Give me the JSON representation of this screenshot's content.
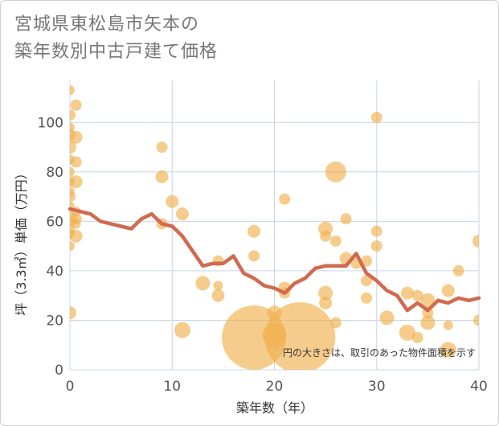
{
  "chart_data": {
    "type": "scatter",
    "title": [
      "宮城県東松島市矢本の",
      "築年数別中古戸建て価格"
    ],
    "xlabel": "築年数（年）",
    "ylabel": "坪（3.3㎡）単価（万円）",
    "xlim": [
      0,
      40
    ],
    "ylim": [
      0,
      117
    ],
    "xticks": [
      0,
      10,
      20,
      30,
      40
    ],
    "yticks": [
      0,
      20,
      40,
      60,
      80,
      100
    ],
    "note": "円の大きさは、取引のあった物件面積を示す",
    "colors": {
      "bubble": "#f0b14f",
      "line": "#d06a50",
      "grid": "#c8d4e0"
    },
    "bubbles": [
      {
        "x": 0,
        "y": 113,
        "s": 6
      },
      {
        "x": 0,
        "y": 103,
        "s": 7
      },
      {
        "x": 0,
        "y": 98,
        "s": 6
      },
      {
        "x": 0,
        "y": 95,
        "s": 7
      },
      {
        "x": 0,
        "y": 90,
        "s": 8
      },
      {
        "x": 0,
        "y": 85,
        "s": 6
      },
      {
        "x": 0,
        "y": 80,
        "s": 6
      },
      {
        "x": 0,
        "y": 76,
        "s": 6
      },
      {
        "x": 0,
        "y": 72,
        "s": 6
      },
      {
        "x": 0,
        "y": 70,
        "s": 7
      },
      {
        "x": 0,
        "y": 66,
        "s": 6
      },
      {
        "x": 0,
        "y": 61,
        "s": 9
      },
      {
        "x": 0,
        "y": 57,
        "s": 6
      },
      {
        "x": 0,
        "y": 55,
        "s": 6
      },
      {
        "x": 0,
        "y": 50,
        "s": 6
      },
      {
        "x": 0,
        "y": 23,
        "s": 8
      },
      {
        "x": 0.6,
        "y": 107,
        "s": 7
      },
      {
        "x": 0.6,
        "y": 94,
        "s": 8
      },
      {
        "x": 0.6,
        "y": 84,
        "s": 7
      },
      {
        "x": 0.6,
        "y": 76,
        "s": 8
      },
      {
        "x": 0.6,
        "y": 64,
        "s": 6
      },
      {
        "x": 0.6,
        "y": 61,
        "s": 7
      },
      {
        "x": 0.6,
        "y": 59,
        "s": 6
      },
      {
        "x": 0.6,
        "y": 54,
        "s": 8
      },
      {
        "x": 9,
        "y": 90,
        "s": 7
      },
      {
        "x": 9,
        "y": 78,
        "s": 8
      },
      {
        "x": 9,
        "y": 59,
        "s": 7
      },
      {
        "x": 10,
        "y": 68,
        "s": 8
      },
      {
        "x": 11,
        "y": 63,
        "s": 8
      },
      {
        "x": 11,
        "y": 16,
        "s": 10
      },
      {
        "x": 13,
        "y": 35,
        "s": 9
      },
      {
        "x": 14.5,
        "y": 44,
        "s": 7
      },
      {
        "x": 14.5,
        "y": 34,
        "s": 6
      },
      {
        "x": 14.5,
        "y": 30,
        "s": 8
      },
      {
        "x": 18,
        "y": 56,
        "s": 8
      },
      {
        "x": 18,
        "y": 46,
        "s": 7
      },
      {
        "x": 18,
        "y": 13,
        "s": 40
      },
      {
        "x": 20,
        "y": 23,
        "s": 9
      },
      {
        "x": 20,
        "y": 14,
        "s": 15
      },
      {
        "x": 21,
        "y": 69,
        "s": 7
      },
      {
        "x": 21,
        "y": 33,
        "s": 8
      },
      {
        "x": 21,
        "y": 31,
        "s": 7
      },
      {
        "x": 22.5,
        "y": 13,
        "s": 44
      },
      {
        "x": 25,
        "y": 57,
        "s": 9
      },
      {
        "x": 25,
        "y": 54,
        "s": 7
      },
      {
        "x": 25,
        "y": 31,
        "s": 9
      },
      {
        "x": 25,
        "y": 27,
        "s": 8
      },
      {
        "x": 26,
        "y": 80,
        "s": 13
      },
      {
        "x": 26,
        "y": 52,
        "s": 7
      },
      {
        "x": 26,
        "y": 19,
        "s": 7
      },
      {
        "x": 27,
        "y": 61,
        "s": 7
      },
      {
        "x": 27,
        "y": 45,
        "s": 8
      },
      {
        "x": 28,
        "y": 43,
        "s": 7
      },
      {
        "x": 29,
        "y": 44,
        "s": 7
      },
      {
        "x": 29,
        "y": 36,
        "s": 7
      },
      {
        "x": 29,
        "y": 29,
        "s": 7
      },
      {
        "x": 30,
        "y": 102,
        "s": 7
      },
      {
        "x": 30,
        "y": 56,
        "s": 7
      },
      {
        "x": 30,
        "y": 50,
        "s": 7
      },
      {
        "x": 31,
        "y": 21,
        "s": 9
      },
      {
        "x": 33,
        "y": 31,
        "s": 8
      },
      {
        "x": 33,
        "y": 15,
        "s": 10
      },
      {
        "x": 34,
        "y": 30,
        "s": 7
      },
      {
        "x": 34,
        "y": 13,
        "s": 7
      },
      {
        "x": 35,
        "y": 28,
        "s": 9
      },
      {
        "x": 35,
        "y": 23,
        "s": 7
      },
      {
        "x": 35,
        "y": 19,
        "s": 9
      },
      {
        "x": 37,
        "y": 32,
        "s": 8
      },
      {
        "x": 37,
        "y": 18,
        "s": 6
      },
      {
        "x": 37,
        "y": 8,
        "s": 10
      },
      {
        "x": 38,
        "y": 40,
        "s": 7
      },
      {
        "x": 40,
        "y": 52,
        "s": 8
      },
      {
        "x": 40,
        "y": 20,
        "s": 7
      }
    ],
    "trend": {
      "x": [
        0,
        1,
        2,
        3,
        4,
        5,
        6,
        7,
        8,
        9,
        10,
        11,
        12,
        13,
        14,
        15,
        16,
        17,
        18,
        19,
        20,
        21,
        22,
        23,
        24,
        25,
        26,
        27,
        28,
        29,
        30,
        31,
        32,
        33,
        34,
        35,
        36,
        37,
        38,
        39,
        40
      ],
      "y": [
        65,
        64,
        63,
        60,
        59,
        58,
        57,
        61,
        63,
        59,
        58,
        54,
        48,
        42,
        43,
        43,
        46,
        39,
        37,
        34,
        33,
        31,
        35,
        37,
        41,
        42,
        42,
        42,
        47,
        39,
        36,
        32,
        30,
        24,
        27,
        24,
        28,
        27,
        29,
        28,
        29
      ]
    }
  }
}
